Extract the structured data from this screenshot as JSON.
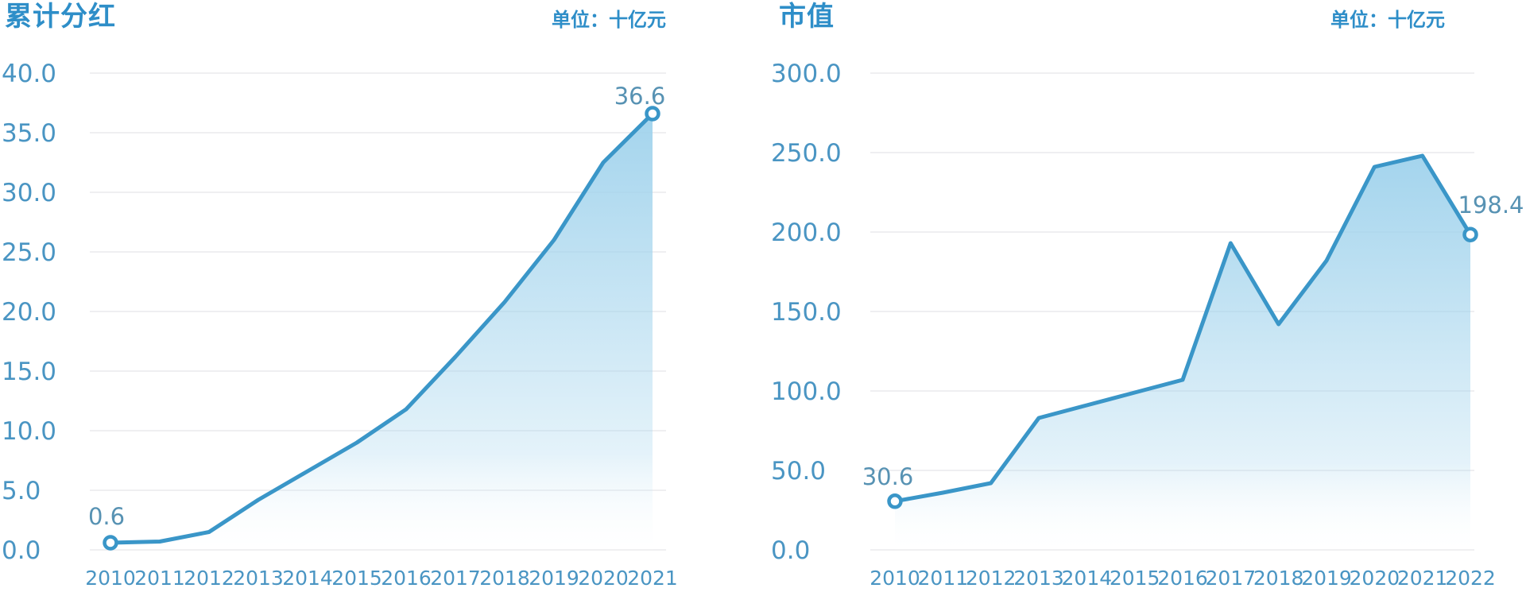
{
  "colors": {
    "title": "#2e8ec8",
    "unit_label": "#2e8ec8",
    "axis_label": "#4a95c3",
    "point_label": "#5792b3",
    "line": "#3a96c8",
    "marker_fill": "#ffffff",
    "grid": "#efeff1",
    "fill_top": "#9fd2ec",
    "fill_bottom": "#ffffff",
    "background": "#ffffff"
  },
  "chart_data": [
    {
      "type": "area",
      "title": "累计分红",
      "unit": "单位：十亿元",
      "xlabel": "",
      "ylabel": "",
      "categories": [
        "2010",
        "2011",
        "2012",
        "2013",
        "2014",
        "2015",
        "2016",
        "2017",
        "2018",
        "2019",
        "2020",
        "2021"
      ],
      "values": [
        0.6,
        0.7,
        1.5,
        4.2,
        6.6,
        9.0,
        11.8,
        16.2,
        20.8,
        26.0,
        32.5,
        36.6
      ],
      "ylim": [
        0,
        40
      ],
      "ytick_step": 5,
      "ytick_labels": [
        "40.0",
        "35.0",
        "30.0",
        "25.0",
        "20.0",
        "15.0",
        "10.0",
        "5.0",
        "0.0"
      ],
      "point_labels": {
        "first": "0.6",
        "last": "36.6"
      },
      "grid": true,
      "legend": null
    },
    {
      "type": "area",
      "title": "市值",
      "unit": "单位：十亿元",
      "xlabel": "",
      "ylabel": "",
      "categories": [
        "2010",
        "2011",
        "2012",
        "2013",
        "2014",
        "2015",
        "2016",
        "2017",
        "2018",
        "2019",
        "2020",
        "2021",
        "2022"
      ],
      "values": [
        30.6,
        36.0,
        42.0,
        83.0,
        91.0,
        99.0,
        107.0,
        193.0,
        142.0,
        182.0,
        241.0,
        248.0,
        198.4
      ],
      "ylim": [
        0,
        300
      ],
      "ytick_step": 50,
      "ytick_labels": [
        "300.0",
        "250.0",
        "200.0",
        "150.0",
        "100.0",
        "50.0",
        "0.0"
      ],
      "point_labels": {
        "first": "30.6",
        "last": "198.4"
      },
      "grid": true,
      "legend": null
    }
  ]
}
